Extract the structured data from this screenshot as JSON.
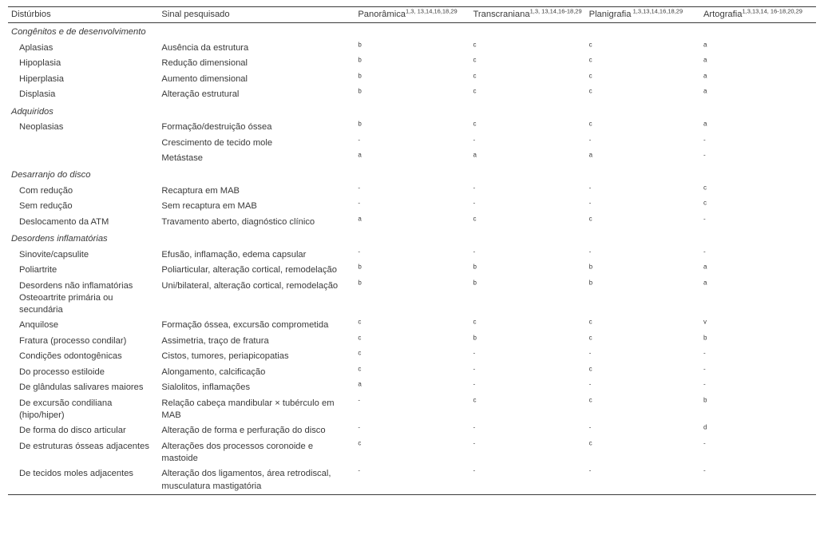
{
  "columns": {
    "c0": "Distúrbios",
    "c1": "Sinal pesquisado",
    "c2": "Panorâmica",
    "c2_sup": "1,3, 13,14,16,18,29",
    "c3": "Transcraniana",
    "c3_sup": "1,3, 13,14,16-18,29",
    "c4": "Planigrafia",
    "c4_sup": " 1,3,13,14,16,18,29",
    "c5": "Artografia",
    "c5_sup": "1,3,13,14, 16-18,20,29"
  },
  "sections": [
    {
      "title": "Congênitos e de desenvolvimento",
      "rows": [
        {
          "d": "Aplasias",
          "s": "Ausência da estrutura",
          "m": [
            "b",
            "c",
            "c",
            "a"
          ]
        },
        {
          "d": "Hipoplasia",
          "s": "Redução dimensional",
          "m": [
            "b",
            "c",
            "c",
            "a"
          ]
        },
        {
          "d": "Hiperplasia",
          "s": "Aumento dimensional",
          "m": [
            "b",
            "c",
            "c",
            "a"
          ]
        },
        {
          "d": "Displasia",
          "s": "Alteração estrutural",
          "m": [
            "b",
            "c",
            "c",
            "a"
          ]
        }
      ]
    },
    {
      "title": "Adquiridos",
      "rows": [
        {
          "d": "Neoplasias",
          "s": "Formação/destruição óssea",
          "m": [
            "b",
            "c",
            "c",
            "a"
          ]
        },
        {
          "d": "",
          "s": "Crescimento de tecido mole",
          "m": [
            "-",
            "-",
            "-",
            "-"
          ]
        },
        {
          "d": "",
          "s": "Metástase",
          "m": [
            "a",
            "a",
            "a",
            "-"
          ]
        }
      ]
    },
    {
      "title": "Desarranjo do disco",
      "rows": [
        {
          "d": "Com redução",
          "s": "Recaptura em MAB",
          "m": [
            "-",
            "-",
            "-",
            "c"
          ]
        },
        {
          "d": "Sem redução",
          "s": "Sem recaptura em MAB",
          "m": [
            "-",
            "-",
            "-",
            "c"
          ]
        },
        {
          "d": "Deslocamento da ATM",
          "s": "Travamento aberto, diagnóstico clínico",
          "m": [
            "a",
            "c",
            "c",
            "-"
          ]
        }
      ]
    },
    {
      "title": "Desordens inflamatórias",
      "rows": [
        {
          "d": "Sinovite/capsulite",
          "s": "Efusão, inflamação, edema capsular",
          "m": [
            "-",
            "-",
            "-",
            "-"
          ]
        },
        {
          "d": "Poliartrite",
          "s": "Poliarticular, alteração cortical, remodelação",
          "m": [
            "b",
            "b",
            "b",
            "a"
          ]
        },
        {
          "d": "Desordens não inflamatórias Osteoartrite primária ou secundária",
          "s": "Uni/bilateral, alteração cortical, remodelação",
          "m": [
            "b",
            "b",
            "b",
            "a"
          ]
        },
        {
          "d": "Anquilose",
          "s": "Formação óssea, excursão comprometida",
          "m": [
            "c",
            "c",
            "c",
            "v"
          ]
        },
        {
          "d": "Fratura (processo condilar)",
          "s": "Assimetria, traço de fratura",
          "m": [
            "c",
            "b",
            "c",
            "b"
          ]
        },
        {
          "d": "Condições odontogênicas",
          "s": "Cistos, tumores, periapicopatias",
          "m": [
            "c",
            "-",
            "-",
            "-"
          ]
        },
        {
          "d": "Do processo estiloide",
          "s": "Alongamento, calcificação",
          "m": [
            "c",
            "-",
            "c",
            "-"
          ]
        },
        {
          "d": "De glândulas salivares maiores",
          "s": "Sialolitos, inflamações",
          "m": [
            "a",
            "-",
            "-",
            "-"
          ]
        },
        {
          "d": "De excursão condiliana (hipo/hiper)",
          "s": "Relação cabeça mandibular × tubérculo em MAB",
          "m": [
            "-",
            "c",
            "c",
            "b"
          ]
        },
        {
          "d": "De forma do disco articular",
          "s": "Alteração de forma e perfuração do disco",
          "m": [
            "-",
            "-",
            "-",
            "d"
          ]
        },
        {
          "d": "De estruturas ósseas adjacentes",
          "s": "Alterações dos processos coronoide e mastoide",
          "m": [
            "c",
            "-",
            "c",
            "-"
          ]
        },
        {
          "d": "De tecidos moles adjacentes",
          "s": "Alteração dos ligamentos, área retrodiscal, musculatura mastigatória",
          "m": [
            "-",
            "-",
            "-",
            "-"
          ]
        }
      ]
    }
  ]
}
